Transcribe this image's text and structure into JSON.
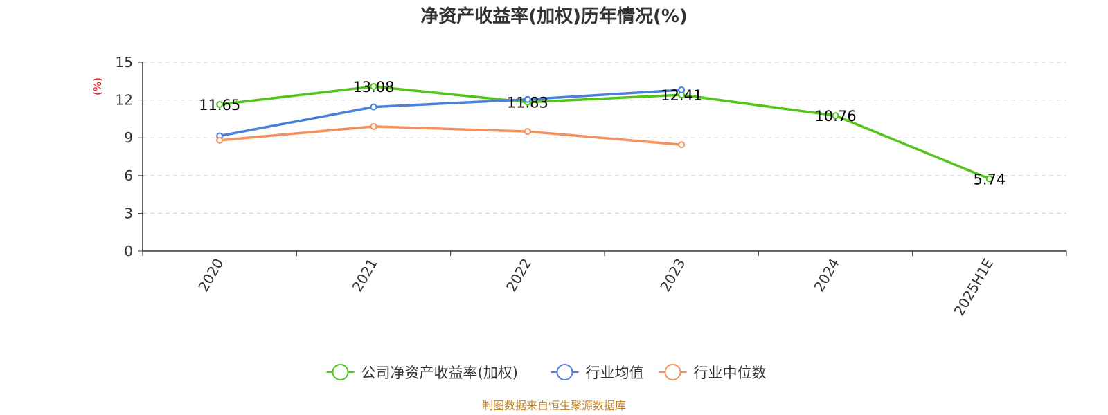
{
  "chart_data": {
    "type": "line",
    "title": "净资产收益率(加权)历年情况(%)",
    "ylabel": "(%)",
    "xlabel": "",
    "categories": [
      "2020",
      "2021",
      "2022",
      "2023",
      "2024",
      "2025H1E"
    ],
    "ylim": [
      0,
      15
    ],
    "yticks": [
      0,
      3,
      6,
      9,
      12,
      15
    ],
    "grid": true,
    "legend_position": "bottom",
    "series": [
      {
        "name": "公司净资产收益率(加权)",
        "color": "#52c41a",
        "values": [
          11.65,
          13.08,
          11.83,
          12.41,
          10.76,
          5.74
        ],
        "labels": [
          "11.65",
          "13.08",
          "11.83",
          "12.41",
          "10.76",
          "5.74"
        ]
      },
      {
        "name": "行业均值",
        "color": "#4a7fdc",
        "values": [
          9.15,
          11.45,
          12.05,
          12.8,
          null,
          null
        ]
      },
      {
        "name": "行业中位数",
        "color": "#f4905e",
        "values": [
          8.8,
          9.9,
          9.5,
          8.45,
          null,
          null
        ]
      }
    ]
  },
  "footer": {
    "source": "制图数据来自恒生聚源数据库"
  }
}
